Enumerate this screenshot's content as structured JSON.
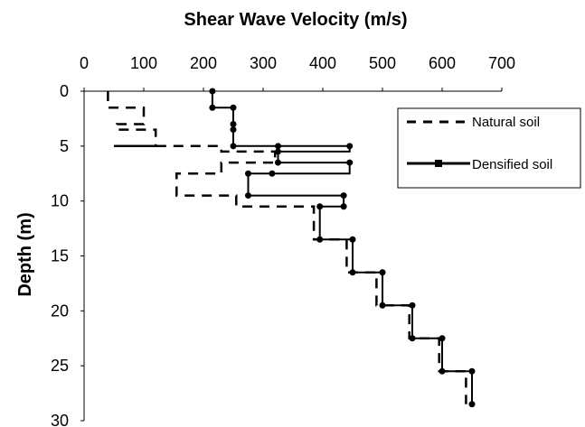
{
  "chart_data": {
    "type": "line",
    "title": "Shear Wave Velocity (m/s)",
    "xlabel": "",
    "ylabel": "Depth (m)",
    "xlim": [
      0,
      700
    ],
    "ylim": [
      0,
      30
    ],
    "x_axis_position": "top",
    "y_axis_inverted": true,
    "x_ticks": [
      "0",
      "100",
      "200",
      "300",
      "400",
      "500",
      "600",
      "700"
    ],
    "y_ticks": [
      "0",
      "5",
      "10",
      "15",
      "20",
      "25",
      "30"
    ],
    "x_tick_values": [
      0,
      100,
      200,
      300,
      400,
      500,
      600,
      700
    ],
    "y_tick_values": [
      0,
      5,
      10,
      15,
      20,
      25,
      30
    ],
    "grid": false,
    "legend_position": "top-right",
    "colors": {
      "series": "#000000",
      "background": "#ffffff",
      "axis": "#000000"
    },
    "series": [
      {
        "name": "Natural soil",
        "style": "dashed",
        "markers": false,
        "points": [
          [
            40,
            0
          ],
          [
            40,
            1.5
          ],
          [
            100,
            1.5
          ],
          [
            100,
            3
          ],
          [
            55,
            3
          ],
          [
            55,
            3.5
          ],
          [
            120,
            3.5
          ],
          [
            120,
            5
          ],
          [
            50,
            5
          ],
          [
            230,
            5
          ],
          [
            230,
            5.5
          ],
          [
            320,
            5.5
          ],
          [
            320,
            6.5
          ],
          [
            230,
            6.5
          ],
          [
            230,
            7.5
          ],
          [
            155,
            7.5
          ],
          [
            155,
            9.5
          ],
          [
            255,
            9.5
          ],
          [
            255,
            10.5
          ],
          [
            385,
            10.5
          ],
          [
            385,
            13.5
          ],
          [
            440,
            13.5
          ],
          [
            440,
            16.5
          ],
          [
            490,
            16.5
          ],
          [
            490,
            19.5
          ],
          [
            545,
            19.5
          ],
          [
            545,
            22.5
          ],
          [
            595,
            22.5
          ],
          [
            595,
            25.5
          ],
          [
            640,
            25.5
          ],
          [
            640,
            28.5
          ]
        ]
      },
      {
        "name": "Densified soil",
        "style": "solid",
        "markers": true,
        "points": [
          [
            215,
            0
          ],
          [
            215,
            1.5
          ],
          [
            250,
            1.5
          ],
          [
            250,
            3
          ],
          [
            250,
            3.5
          ],
          [
            250,
            5
          ],
          [
            445,
            5
          ],
          [
            445,
            5.5
          ],
          [
            325,
            5.5
          ],
          [
            325,
            6.5
          ],
          [
            445,
            6.5
          ],
          [
            445,
            7.5
          ],
          [
            275,
            7.5
          ],
          [
            275,
            9.5
          ],
          [
            435,
            9.5
          ],
          [
            435,
            10.5
          ],
          [
            395,
            10.5
          ],
          [
            395,
            13.5
          ],
          [
            450,
            13.5
          ],
          [
            450,
            16.5
          ],
          [
            500,
            16.5
          ],
          [
            500,
            19.5
          ],
          [
            550,
            19.5
          ],
          [
            550,
            22.5
          ],
          [
            600,
            22.5
          ],
          [
            600,
            25.5
          ],
          [
            650,
            25.5
          ],
          [
            650,
            28.5
          ]
        ],
        "marker_points": [
          [
            215,
            0
          ],
          [
            215,
            1.5
          ],
          [
            250,
            1.5
          ],
          [
            250,
            3
          ],
          [
            250,
            3.5
          ],
          [
            250,
            5
          ],
          [
            325,
            5
          ],
          [
            445,
            5
          ],
          [
            325,
            5.5
          ],
          [
            325,
            6.5
          ],
          [
            445,
            6.5
          ],
          [
            315,
            7.5
          ],
          [
            275,
            7.5
          ],
          [
            275,
            9.5
          ],
          [
            435,
            9.5
          ],
          [
            435,
            10.5
          ],
          [
            395,
            10.5
          ],
          [
            395,
            13.5
          ],
          [
            450,
            13.5
          ],
          [
            450,
            16.5
          ],
          [
            500,
            16.5
          ],
          [
            500,
            19.5
          ],
          [
            550,
            19.5
          ],
          [
            550,
            22.5
          ],
          [
            600,
            22.5
          ],
          [
            600,
            25.5
          ],
          [
            650,
            25.5
          ],
          [
            650,
            28.5
          ]
        ]
      }
    ]
  }
}
